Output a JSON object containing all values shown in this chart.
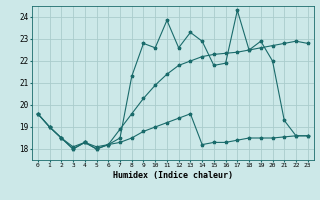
{
  "xlabel": "Humidex (Indice chaleur)",
  "bg_color": "#cce8e8",
  "grid_color": "#aacccc",
  "line_color": "#1a6b6b",
  "xlim": [
    -0.5,
    23.5
  ],
  "ylim": [
    17.5,
    24.5
  ],
  "xticks": [
    0,
    1,
    2,
    3,
    4,
    5,
    6,
    7,
    8,
    9,
    10,
    11,
    12,
    13,
    14,
    15,
    16,
    17,
    18,
    19,
    20,
    21,
    22,
    23
  ],
  "yticks": [
    18,
    19,
    20,
    21,
    22,
    23,
    24
  ],
  "line1_x": [
    0,
    1,
    2,
    3,
    4,
    5,
    6,
    7,
    8,
    9,
    10,
    11,
    12,
    13,
    14,
    15,
    16,
    17,
    18,
    19,
    20,
    21,
    22,
    23
  ],
  "line1_y": [
    19.6,
    19.0,
    18.5,
    18.0,
    18.3,
    18.0,
    18.2,
    18.3,
    18.5,
    18.8,
    19.0,
    19.2,
    19.4,
    19.6,
    18.2,
    18.3,
    18.3,
    18.4,
    18.5,
    18.5,
    18.5,
    18.55,
    18.6,
    18.6
  ],
  "line2_x": [
    0,
    1,
    2,
    3,
    4,
    5,
    6,
    7,
    8,
    9,
    10,
    11,
    12,
    13,
    14,
    15,
    16,
    17,
    18,
    19,
    20,
    21,
    22,
    23
  ],
  "line2_y": [
    19.6,
    19.0,
    18.5,
    18.0,
    18.3,
    18.0,
    18.2,
    18.5,
    21.3,
    22.8,
    22.6,
    23.85,
    22.6,
    23.3,
    22.9,
    21.8,
    21.9,
    24.3,
    22.5,
    22.9,
    22.0,
    19.3,
    18.6,
    18.6
  ],
  "line3_x": [
    0,
    1,
    2,
    3,
    4,
    5,
    6,
    7,
    8,
    9,
    10,
    11,
    12,
    13,
    14,
    15,
    16,
    17,
    18,
    19,
    20,
    21,
    22,
    23
  ],
  "line3_y": [
    19.6,
    19.0,
    18.5,
    18.1,
    18.3,
    18.1,
    18.2,
    18.9,
    19.6,
    20.3,
    20.9,
    21.4,
    21.8,
    22.0,
    22.2,
    22.3,
    22.35,
    22.4,
    22.5,
    22.6,
    22.7,
    22.8,
    22.9,
    22.8
  ]
}
